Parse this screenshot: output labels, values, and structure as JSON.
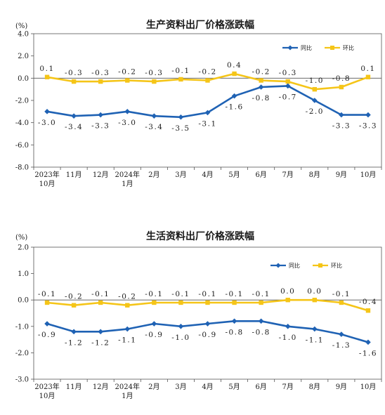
{
  "chart_data": [
    {
      "type": "line",
      "title": "生产资料出厂价格涨跌幅",
      "unit_label": "(%)",
      "categories": [
        [
          "2023年",
          "10月"
        ],
        [
          "11月"
        ],
        [
          "12月"
        ],
        [
          "2024年",
          "1月"
        ],
        [
          "2月"
        ],
        [
          "3月"
        ],
        [
          "4月"
        ],
        [
          "5月"
        ],
        [
          "6月"
        ],
        [
          "7月"
        ],
        [
          "8月"
        ],
        [
          "9月"
        ],
        [
          "10月"
        ]
      ],
      "ylim": [
        -8.0,
        4.0
      ],
      "yticks": [
        -8.0,
        -6.0,
        -4.0,
        -2.0,
        0.0,
        2.0,
        4.0
      ],
      "ytick_labels": [
        "-8.0",
        "-6.0",
        "-4.0",
        "-2.0",
        "0.0",
        "2.0",
        "4.0"
      ],
      "legend_position": "top-right",
      "grid": false,
      "series": [
        {
          "name": "同比",
          "color": "#1f62b4",
          "marker": "diamond",
          "label_position": "below",
          "values": [
            -3.0,
            -3.4,
            -3.3,
            -3.0,
            -3.4,
            -3.5,
            -3.1,
            -1.6,
            -0.8,
            -0.7,
            -2.0,
            -3.3,
            -3.3
          ],
          "labels": [
            "-3.0",
            "-3.4",
            "-3.3",
            "-3.0",
            "-3.4",
            "-3.5",
            "-3.1",
            "-1.6",
            "-0.8",
            "-0.7",
            "-2.0",
            "-3.3",
            "-3.3"
          ]
        },
        {
          "name": "环比",
          "color": "#f5c518",
          "marker": "square",
          "label_position": "above",
          "values": [
            0.1,
            -0.3,
            -0.3,
            -0.2,
            -0.3,
            -0.1,
            -0.2,
            0.4,
            -0.2,
            -0.3,
            -1.0,
            -0.8,
            0.1
          ],
          "labels": [
            "0.1",
            "-0.3",
            "-0.3",
            "-0.2",
            "-0.3",
            "-0.1",
            "-0.2",
            "0.4",
            "-0.2",
            "-0.3",
            "-1.0",
            "-0.8",
            "0.1"
          ]
        }
      ]
    },
    {
      "type": "line",
      "title": "生活资料出厂价格涨跌幅",
      "unit_label": "(%)",
      "categories": [
        [
          "2023年",
          "10月"
        ],
        [
          "11月"
        ],
        [
          "12月"
        ],
        [
          "2024年",
          "1月"
        ],
        [
          "2月"
        ],
        [
          "3月"
        ],
        [
          "4月"
        ],
        [
          "5月"
        ],
        [
          "6月"
        ],
        [
          "7月"
        ],
        [
          "8月"
        ],
        [
          "9月"
        ],
        [
          "10月"
        ]
      ],
      "ylim": [
        -3.0,
        2.0
      ],
      "yticks": [
        -3.0,
        -2.0,
        -1.0,
        0.0,
        1.0,
        2.0
      ],
      "ytick_labels": [
        "-3.0",
        "-2.0",
        "-1.0",
        "0.0",
        "1.0",
        "2.0"
      ],
      "legend_position": "top-right",
      "grid": false,
      "series": [
        {
          "name": "同比",
          "color": "#1f62b4",
          "marker": "diamond",
          "label_position": "below",
          "values": [
            -0.9,
            -1.2,
            -1.2,
            -1.1,
            -0.9,
            -1.0,
            -0.9,
            -0.8,
            -0.8,
            -1.0,
            -1.1,
            -1.3,
            -1.6
          ],
          "labels": [
            "-0.9",
            "-1.2",
            "-1.2",
            "-1.1",
            "-0.9",
            "-1.0",
            "-0.9",
            "-0.8",
            "-0.8",
            "-1.0",
            "-1.1",
            "-1.3",
            "-1.6"
          ]
        },
        {
          "name": "环比",
          "color": "#f5c518",
          "marker": "square",
          "label_position": "above",
          "values": [
            -0.1,
            -0.2,
            -0.1,
            -0.2,
            -0.1,
            -0.1,
            -0.1,
            -0.1,
            -0.1,
            0.0,
            0.0,
            -0.1,
            -0.4
          ],
          "labels": [
            "-0.1",
            "-0.2",
            "-0.1",
            "-0.2",
            "-0.1",
            "-0.1",
            "-0.1",
            "-0.1",
            "-0.1",
            "0.0",
            "0.0",
            "-0.1",
            "-0.4"
          ]
        }
      ]
    }
  ]
}
